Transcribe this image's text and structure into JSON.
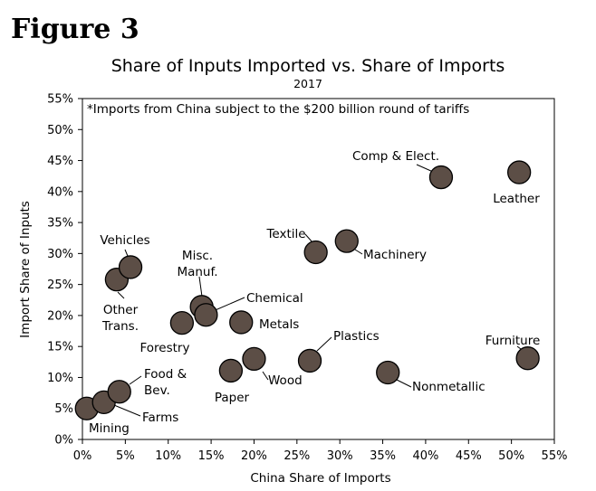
{
  "figure_label": "Figure 3",
  "chart_data": {
    "type": "scatter",
    "title": "Share of Inputs Imported vs. Share of Imports",
    "subtitle": "2017",
    "note": "*Imports from China subject to the $200 billion round of tariffs",
    "xlabel": "China Share of Imports",
    "ylabel": "Import Share of Inputs",
    "xlim": [
      0,
      55
    ],
    "ylim": [
      0,
      55
    ],
    "x_ticks": [
      "0%",
      "5%",
      "10%",
      "15%",
      "20%",
      "25%",
      "30%",
      "35%",
      "40%",
      "45%",
      "50%",
      "55%"
    ],
    "y_ticks": [
      "0%",
      "5%",
      "10%",
      "15%",
      "20%",
      "25%",
      "30%",
      "35%",
      "40%",
      "45%",
      "50%",
      "55%"
    ],
    "grid": false,
    "points": [
      {
        "label": [
          "Mining"
        ],
        "x": 0.5,
        "y": 5.0
      },
      {
        "label": [
          "Farms"
        ],
        "x": 2.5,
        "y": 6.0
      },
      {
        "label": [
          "Food &",
          "Bev."
        ],
        "x": 4.3,
        "y": 7.7
      },
      {
        "label": [
          "Other",
          "Trans."
        ],
        "x": 4.0,
        "y": 25.8
      },
      {
        "label": [
          "Vehicles"
        ],
        "x": 5.6,
        "y": 27.8
      },
      {
        "label": [
          "Forestry"
        ],
        "x": 11.6,
        "y": 18.8
      },
      {
        "label": [
          "Misc.",
          "Manuf."
        ],
        "x": 13.9,
        "y": 21.4
      },
      {
        "label": [
          "Chemical"
        ],
        "x": 14.4,
        "y": 20.1
      },
      {
        "label": [
          "Paper"
        ],
        "x": 17.3,
        "y": 11.1
      },
      {
        "label": [
          "Metals"
        ],
        "x": 18.5,
        "y": 18.9
      },
      {
        "label": [
          "Wood"
        ],
        "x": 20.0,
        "y": 13.0
      },
      {
        "label": [
          "Plastics"
        ],
        "x": 26.5,
        "y": 12.7
      },
      {
        "label": [
          "Textile"
        ],
        "x": 27.2,
        "y": 30.2
      },
      {
        "label": [
          "Machinery"
        ],
        "x": 30.8,
        "y": 32.0
      },
      {
        "label": [
          "Nonmetallic"
        ],
        "x": 35.6,
        "y": 10.8
      },
      {
        "label": [
          "Comp & Elect."
        ],
        "x": 41.8,
        "y": 42.3
      },
      {
        "label": [
          "Leather"
        ],
        "x": 50.9,
        "y": 43.1
      },
      {
        "label": [
          "Furniture"
        ],
        "x": 51.9,
        "y": 13.1
      }
    ]
  }
}
